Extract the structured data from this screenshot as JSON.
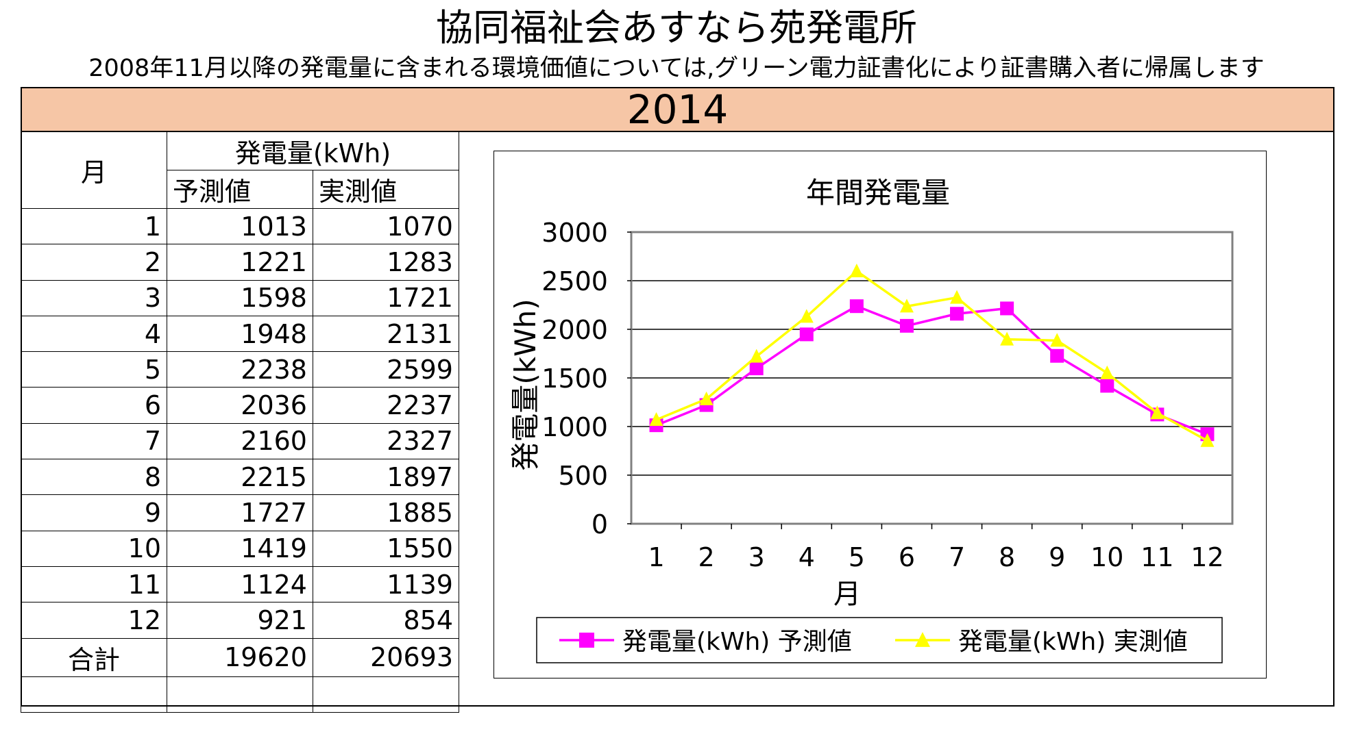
{
  "title": "協同福祉会あすなら苑発電所",
  "subtitle": "2008年11月以降の発電量に含まれる環境価値については,グリーン電力証書化により証書購入者に帰属します",
  "year": "2014",
  "table": {
    "month_header": "月",
    "group_header": "発電量(kWh)",
    "pred_header": "予測値",
    "actual_header": "実測値",
    "rows": [
      {
        "month": "1",
        "pred": "1013",
        "actual": "1070"
      },
      {
        "month": "2",
        "pred": "1221",
        "actual": "1283"
      },
      {
        "month": "3",
        "pred": "1598",
        "actual": "1721"
      },
      {
        "month": "4",
        "pred": "1948",
        "actual": "2131"
      },
      {
        "month": "5",
        "pred": "2238",
        "actual": "2599"
      },
      {
        "month": "6",
        "pred": "2036",
        "actual": "2237"
      },
      {
        "month": "7",
        "pred": "2160",
        "actual": "2327"
      },
      {
        "month": "8",
        "pred": "2215",
        "actual": "1897"
      },
      {
        "month": "9",
        "pred": "1727",
        "actual": "1885"
      },
      {
        "month": "10",
        "pred": "1419",
        "actual": "1550"
      },
      {
        "month": "11",
        "pred": "1124",
        "actual": "1139"
      },
      {
        "month": "12",
        "pred": "921",
        "actual": "854"
      }
    ],
    "total_label": "合計",
    "total_pred": "19620",
    "total_actual": "20693"
  },
  "chart_data": {
    "type": "line",
    "title": "年間発電量",
    "xlabel": "月",
    "ylabel": "発電量(kWh)",
    "categories": [
      "1",
      "2",
      "3",
      "4",
      "5",
      "6",
      "7",
      "8",
      "9",
      "10",
      "11",
      "12"
    ],
    "ylim": [
      0,
      3000
    ],
    "yticks": [
      0,
      500,
      1000,
      1500,
      2000,
      2500,
      3000
    ],
    "grid": true,
    "legend": "bottom",
    "series": [
      {
        "name": "発電量(kWh) 予測値",
        "color": "#ff00ff",
        "marker": "square",
        "values": [
          1013,
          1221,
          1598,
          1948,
          2238,
          2036,
          2160,
          2215,
          1727,
          1419,
          1124,
          921
        ]
      },
      {
        "name": "発電量(kWh) 実測値",
        "color": "#ffff00",
        "marker": "triangle",
        "values": [
          1070,
          1283,
          1721,
          2131,
          2599,
          2237,
          2327,
          1897,
          1885,
          1550,
          1139,
          854
        ]
      }
    ]
  }
}
